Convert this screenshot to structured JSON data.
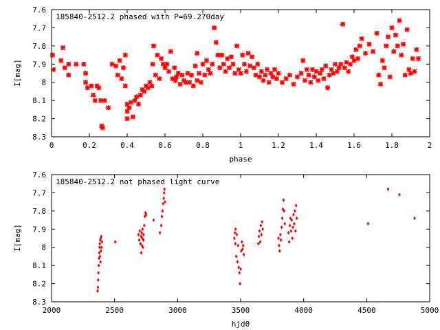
{
  "chart_data": [
    {
      "type": "scatter",
      "title": "185840-2512.2 phased with P=69.270day",
      "xlabel": "phase",
      "ylabel": "I[mag]",
      "xlim": [
        0,
        2
      ],
      "ylim": [
        7.6,
        8.3
      ],
      "y_inverted": true,
      "xticks": [
        "0",
        "0.2",
        "0.4",
        "0.6",
        "0.8",
        "1",
        "1.2",
        "1.4",
        "1.6",
        "1.8",
        "2"
      ],
      "yticks": [
        "7.6",
        "7.7",
        "7.8",
        "7.9",
        "8",
        "8.1",
        "8.2",
        "8.3"
      ],
      "grid": false,
      "legend": "none",
      "marker_color": "#ff0000",
      "marker": "star",
      "points": [
        [
          0.005,
          7.85
        ],
        [
          0.01,
          7.93
        ],
        [
          0.05,
          7.88
        ],
        [
          0.06,
          7.81
        ],
        [
          0.07,
          7.92
        ],
        [
          0.09,
          7.9
        ],
        [
          0.09,
          7.96
        ],
        [
          0.13,
          7.9
        ],
        [
          0.17,
          7.9
        ],
        [
          0.18,
          7.95
        ],
        [
          0.18,
          8.0
        ],
        [
          0.19,
          8.03
        ],
        [
          0.21,
          8.02
        ],
        [
          0.22,
          8.07
        ],
        [
          0.23,
          8.1
        ],
        [
          0.24,
          8.02
        ],
        [
          0.25,
          8.03
        ],
        [
          0.26,
          8.1
        ],
        [
          0.265,
          8.24
        ],
        [
          0.27,
          8.25
        ],
        [
          0.28,
          8.1
        ],
        [
          0.3,
          8.14
        ],
        [
          0.32,
          7.9
        ],
        [
          0.34,
          7.91
        ],
        [
          0.35,
          7.96
        ],
        [
          0.36,
          7.88
        ],
        [
          0.37,
          7.98
        ],
        [
          0.38,
          7.92
        ],
        [
          0.39,
          7.85
        ],
        [
          0.39,
          8.02
        ],
        [
          0.4,
          8.12
        ],
        [
          0.4,
          8.16
        ],
        [
          0.4,
          8.2
        ],
        [
          0.41,
          8.14
        ],
        [
          0.42,
          8.11
        ],
        [
          0.43,
          8.19
        ],
        [
          0.44,
          8.1
        ],
        [
          0.45,
          8.08
        ],
        [
          0.46,
          8.12
        ],
        [
          0.47,
          8.07
        ],
        [
          0.48,
          8.04
        ],
        [
          0.49,
          8.05
        ],
        [
          0.5,
          8.02
        ],
        [
          0.51,
          8.03
        ],
        [
          0.52,
          8.0
        ],
        [
          0.53,
          8.02
        ],
        [
          0.535,
          7.9
        ],
        [
          0.54,
          7.8
        ],
        [
          0.55,
          7.96
        ],
        [
          0.56,
          7.85
        ],
        [
          0.57,
          7.98
        ],
        [
          0.58,
          7.87
        ],
        [
          0.59,
          7.9
        ],
        [
          0.6,
          7.92
        ],
        [
          0.61,
          7.9
        ],
        [
          0.62,
          7.94
        ],
        [
          0.63,
          7.83
        ],
        [
          0.64,
          7.98
        ],
        [
          0.65,
          7.92
        ],
        [
          0.655,
          7.99
        ],
        [
          0.66,
          7.97
        ],
        [
          0.67,
          7.95
        ],
        [
          0.68,
          8.01
        ],
        [
          0.69,
          7.96
        ],
        [
          0.7,
          7.99
        ],
        [
          0.71,
          8.0
        ],
        [
          0.72,
          7.95
        ],
        [
          0.73,
          8.0
        ],
        [
          0.74,
          7.96
        ],
        [
          0.75,
          8.02
        ],
        [
          0.76,
          7.91
        ],
        [
          0.77,
          7.84
        ],
        [
          0.77,
          7.99
        ],
        [
          0.78,
          7.95
        ],
        [
          0.79,
          8.0
        ],
        [
          0.8,
          7.9
        ],
        [
          0.81,
          7.96
        ],
        [
          0.82,
          7.88
        ],
        [
          0.83,
          7.93
        ],
        [
          0.84,
          7.95
        ],
        [
          0.85,
          7.9
        ],
        [
          0.86,
          7.7
        ],
        [
          0.87,
          7.78
        ],
        [
          0.88,
          7.85
        ],
        [
          0.89,
          7.92
        ],
        [
          0.9,
          7.85
        ],
        [
          0.91,
          7.9
        ],
        [
          0.92,
          7.94
        ],
        [
          0.93,
          7.87
        ],
        [
          0.94,
          7.92
        ],
        [
          0.95,
          7.86
        ],
        [
          0.96,
          7.9
        ],
        [
          0.97,
          7.95
        ],
        [
          0.98,
          7.8
        ],
        [
          0.99,
          7.93
        ],
        [
          1.0,
          7.95
        ],
        [
          1.01,
          7.85
        ],
        [
          1.02,
          7.9
        ],
        [
          1.03,
          7.94
        ],
        [
          1.04,
          7.84
        ],
        [
          1.05,
          7.91
        ],
        [
          1.06,
          7.86
        ],
        [
          1.07,
          7.92
        ],
        [
          1.08,
          7.96
        ],
        [
          1.09,
          7.9
        ],
        [
          1.1,
          7.97
        ],
        [
          1.11,
          7.94
        ],
        [
          1.12,
          7.99
        ],
        [
          1.13,
          7.96
        ],
        [
          1.14,
          7.93
        ],
        [
          1.15,
          8.0
        ],
        [
          1.16,
          7.95
        ],
        [
          1.17,
          7.97
        ],
        [
          1.18,
          7.93
        ],
        [
          1.19,
          7.98
        ],
        [
          1.2,
          7.95
        ],
        [
          1.22,
          8.0
        ],
        [
          1.24,
          7.98
        ],
        [
          1.26,
          7.96
        ],
        [
          1.28,
          8.01
        ],
        [
          1.3,
          7.97
        ],
        [
          1.32,
          7.95
        ],
        [
          1.33,
          7.88
        ],
        [
          1.34,
          7.99
        ],
        [
          1.35,
          7.93
        ],
        [
          1.36,
          7.96
        ],
        [
          1.37,
          8.0
        ],
        [
          1.38,
          7.93
        ],
        [
          1.39,
          7.97
        ],
        [
          1.4,
          7.94
        ],
        [
          1.41,
          7.99
        ],
        [
          1.42,
          7.95
        ],
        [
          1.43,
          7.93
        ],
        [
          1.44,
          7.98
        ],
        [
          1.45,
          7.91
        ],
        [
          1.46,
          8.03
        ],
        [
          1.47,
          7.96
        ],
        [
          1.48,
          7.93
        ],
        [
          1.49,
          7.95
        ],
        [
          1.5,
          7.9
        ],
        [
          1.51,
          7.94
        ],
        [
          1.52,
          7.92
        ],
        [
          1.53,
          7.9
        ],
        [
          1.54,
          7.68
        ],
        [
          1.55,
          7.92
        ],
        [
          1.56,
          7.89
        ],
        [
          1.57,
          7.94
        ],
        [
          1.58,
          7.9
        ],
        [
          1.59,
          7.86
        ],
        [
          1.6,
          7.88
        ],
        [
          1.61,
          7.82
        ],
        [
          1.62,
          7.87
        ],
        [
          1.63,
          7.8
        ],
        [
          1.64,
          7.76
        ],
        [
          1.66,
          7.84
        ],
        [
          1.68,
          7.79
        ],
        [
          1.7,
          7.83
        ],
        [
          1.72,
          7.73
        ],
        [
          1.73,
          7.96
        ],
        [
          1.74,
          8.01
        ],
        [
          1.75,
          7.88
        ],
        [
          1.76,
          7.92
        ],
        [
          1.77,
          7.8
        ],
        [
          1.78,
          7.75
        ],
        [
          1.79,
          7.97
        ],
        [
          1.8,
          7.7
        ],
        [
          1.81,
          7.83
        ],
        [
          1.82,
          7.74
        ],
        [
          1.83,
          7.8
        ],
        [
          1.84,
          7.66
        ],
        [
          1.85,
          7.85
        ],
        [
          1.86,
          7.79
        ],
        [
          1.87,
          7.96
        ],
        [
          1.88,
          7.71
        ],
        [
          1.89,
          7.93
        ],
        [
          1.9,
          7.95
        ],
        [
          1.91,
          7.87
        ],
        [
          1.92,
          7.94
        ],
        [
          1.93,
          7.82
        ],
        [
          1.94,
          7.87
        ]
      ]
    },
    {
      "type": "scatter",
      "title": "185840-2512.2 not phased light curve",
      "xlabel": "hjd0",
      "ylabel": "I[mag]",
      "xlim": [
        2000,
        5000
      ],
      "ylim": [
        7.6,
        8.3
      ],
      "y_inverted": true,
      "xticks": [
        "2000",
        "2500",
        "3000",
        "3500",
        "4000",
        "4500",
        "5000"
      ],
      "yticks": [
        "7.6",
        "7.7",
        "7.8",
        "7.9",
        "8",
        "8.1",
        "8.2",
        "8.3"
      ],
      "grid": false,
      "legend": "none",
      "marker_color": "#ff0000",
      "marker": "diamond",
      "points": [
        [
          2365,
          8.24
        ],
        [
          2368,
          8.22
        ],
        [
          2370,
          8.18
        ],
        [
          2372,
          8.14
        ],
        [
          2374,
          8.1
        ],
        [
          2376,
          8.06
        ],
        [
          2378,
          8.03
        ],
        [
          2380,
          8.0
        ],
        [
          2382,
          7.98
        ],
        [
          2384,
          8.05
        ],
        [
          2386,
          7.96
        ],
        [
          2388,
          8.08
        ],
        [
          2390,
          7.95
        ],
        [
          2392,
          8.02
        ],
        [
          2394,
          7.94
        ],
        [
          2396,
          8.0
        ],
        [
          2400,
          7.97
        ],
        [
          2505,
          7.97
        ],
        [
          2690,
          7.93
        ],
        [
          2695,
          7.96
        ],
        [
          2700,
          7.91
        ],
        [
          2705,
          7.98
        ],
        [
          2710,
          7.94
        ],
        [
          2712,
          8.03
        ],
        [
          2715,
          7.92
        ],
        [
          2718,
          7.99
        ],
        [
          2720,
          7.95
        ],
        [
          2722,
          7.9
        ],
        [
          2725,
          8.0
        ],
        [
          2728,
          7.96
        ],
        [
          2730,
          7.93
        ],
        [
          2735,
          7.88
        ],
        [
          2740,
          7.83
        ],
        [
          2745,
          7.81
        ],
        [
          2750,
          7.82
        ],
        [
          2810,
          7.85
        ],
        [
          2860,
          7.92
        ],
        [
          2870,
          7.88
        ],
        [
          2875,
          7.83
        ],
        [
          2880,
          7.8
        ],
        [
          2885,
          7.76
        ],
        [
          2890,
          7.73
        ],
        [
          2893,
          7.7
        ],
        [
          2896,
          7.68
        ],
        [
          2900,
          7.75
        ],
        [
          3450,
          7.95
        ],
        [
          3455,
          7.92
        ],
        [
          3458,
          7.98
        ],
        [
          3460,
          7.9
        ],
        [
          3465,
          8.05
        ],
        [
          3470,
          7.93
        ],
        [
          3475,
          8.08
        ],
        [
          3480,
          7.99
        ],
        [
          3485,
          8.11
        ],
        [
          3490,
          8.14
        ],
        [
          3495,
          8.2
        ],
        [
          3500,
          8.12
        ],
        [
          3505,
          8.02
        ],
        [
          3510,
          7.97
        ],
        [
          3515,
          8.01
        ],
        [
          3520,
          7.99
        ],
        [
          3525,
          8.04
        ],
        [
          3640,
          7.98
        ],
        [
          3645,
          7.94
        ],
        [
          3650,
          7.91
        ],
        [
          3655,
          7.97
        ],
        [
          3660,
          7.88
        ],
        [
          3665,
          7.93
        ],
        [
          3670,
          7.86
        ],
        [
          3675,
          7.9
        ],
        [
          3800,
          7.95
        ],
        [
          3805,
          7.99
        ],
        [
          3810,
          8.02
        ],
        [
          3815,
          7.93
        ],
        [
          3820,
          7.96
        ],
        [
          3825,
          7.89
        ],
        [
          3830,
          7.84
        ],
        [
          3835,
          7.79
        ],
        [
          3840,
          7.74
        ],
        [
          3845,
          7.8
        ],
        [
          3850,
          7.87
        ],
        [
          3880,
          7.92
        ],
        [
          3885,
          7.97
        ],
        [
          3890,
          7.88
        ],
        [
          3895,
          7.84
        ],
        [
          3900,
          7.91
        ],
        [
          3905,
          7.85
        ],
        [
          3910,
          7.95
        ],
        [
          3915,
          7.89
        ],
        [
          3920,
          7.82
        ],
        [
          3925,
          7.87
        ],
        [
          3930,
          7.8
        ],
        [
          3935,
          7.91
        ],
        [
          3940,
          7.77
        ],
        [
          3945,
          7.84
        ],
        [
          4510,
          7.87
        ],
        [
          4670,
          7.68
        ],
        [
          4760,
          7.71
        ],
        [
          4880,
          7.84
        ]
      ]
    }
  ]
}
